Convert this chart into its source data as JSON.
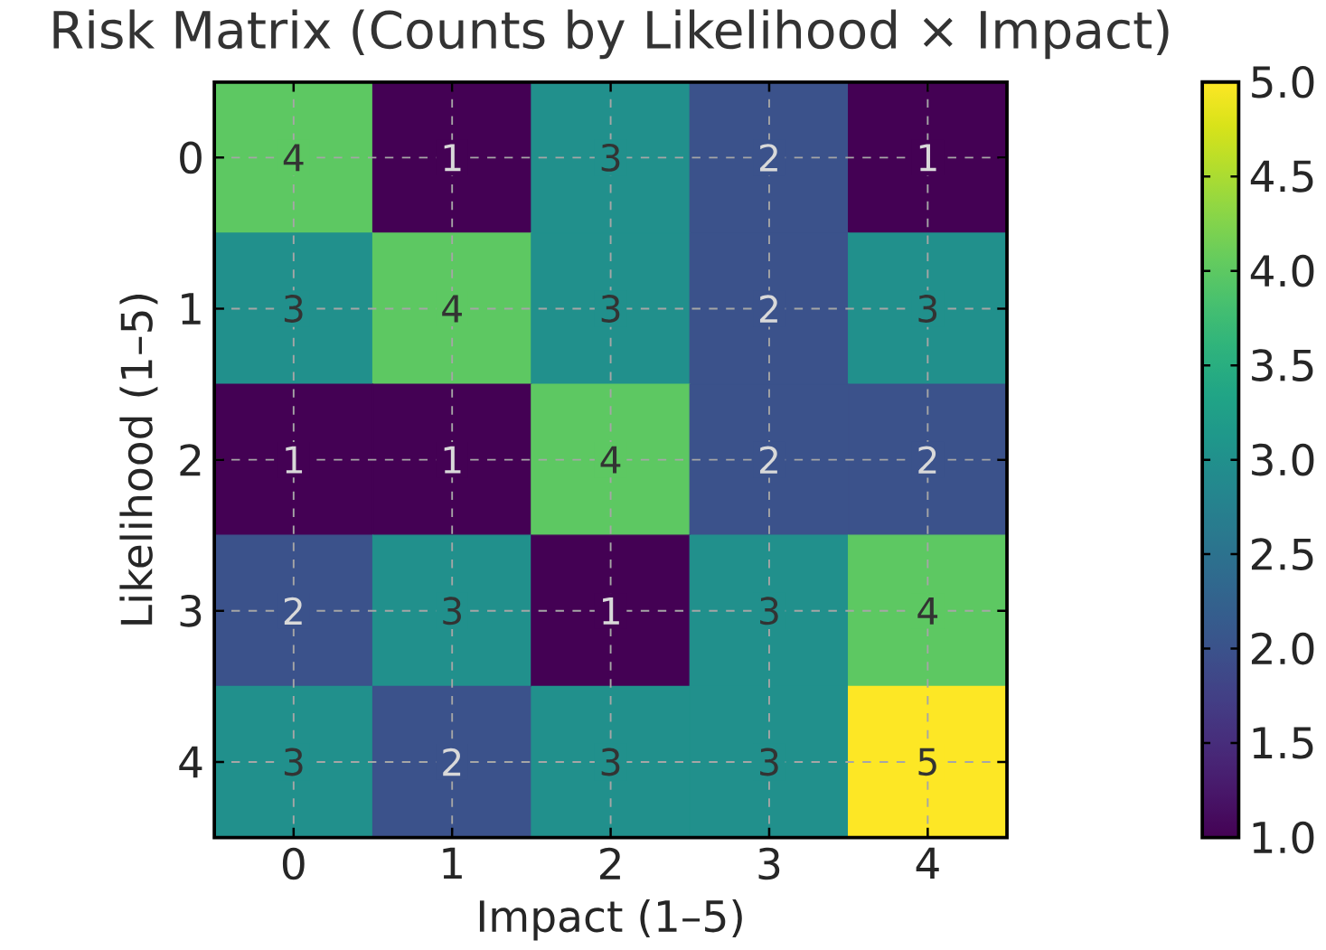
{
  "chart_data": {
    "type": "heatmap",
    "title": "Risk Matrix (Counts by Likelihood × Impact)",
    "xlabel": "Impact (1–5)",
    "ylabel": "Likelihood (1–5)",
    "categories": [
      "0",
      "1",
      "2",
      "3",
      "4"
    ],
    "y_categories": [
      "0",
      "1",
      "2",
      "3",
      "4"
    ],
    "cells": [
      [
        4,
        1,
        3,
        2,
        1
      ],
      [
        3,
        4,
        3,
        2,
        3
      ],
      [
        1,
        1,
        4,
        2,
        2
      ],
      [
        2,
        3,
        1,
        3,
        4
      ],
      [
        3,
        2,
        3,
        3,
        5
      ]
    ],
    "clim": [
      1,
      5
    ],
    "cticks": [
      {
        "value": 1,
        "label": "1.0"
      },
      {
        "value": 1.5,
        "label": "1.5"
      },
      {
        "value": 2,
        "label": "2.0"
      },
      {
        "value": 2.5,
        "label": "2.5"
      },
      {
        "value": 3,
        "label": "3.0"
      },
      {
        "value": 3.5,
        "label": "3.5"
      },
      {
        "value": 4,
        "label": "4.0"
      },
      {
        "value": 4.5,
        "label": "4.5"
      },
      {
        "value": 5,
        "label": "5.0"
      }
    ],
    "data_labels": true,
    "grid": true
  }
}
